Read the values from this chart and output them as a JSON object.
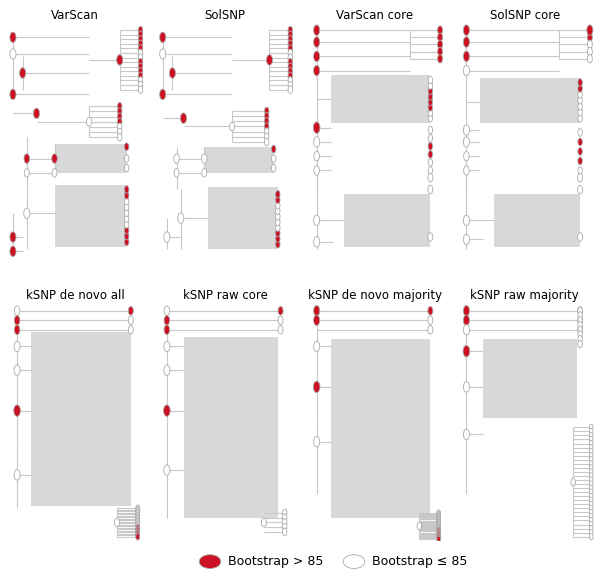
{
  "titles_row1": [
    "VarScan",
    "SolSNP",
    "VarScan core",
    "SolSNP core"
  ],
  "titles_row2": [
    "kSNP de novo all",
    "kSNP raw core",
    "kSNP de novo majority",
    "kSNP raw majority"
  ],
  "bg_color": "#ffffff",
  "line_color": "#c8c8c8",
  "shade_color": "#d8d8d8",
  "red": "#cc1122",
  "white": "#ffffff",
  "edge_color": "#aaaaaa",
  "title_fontsize": 8.5,
  "legend_fontsize": 9
}
